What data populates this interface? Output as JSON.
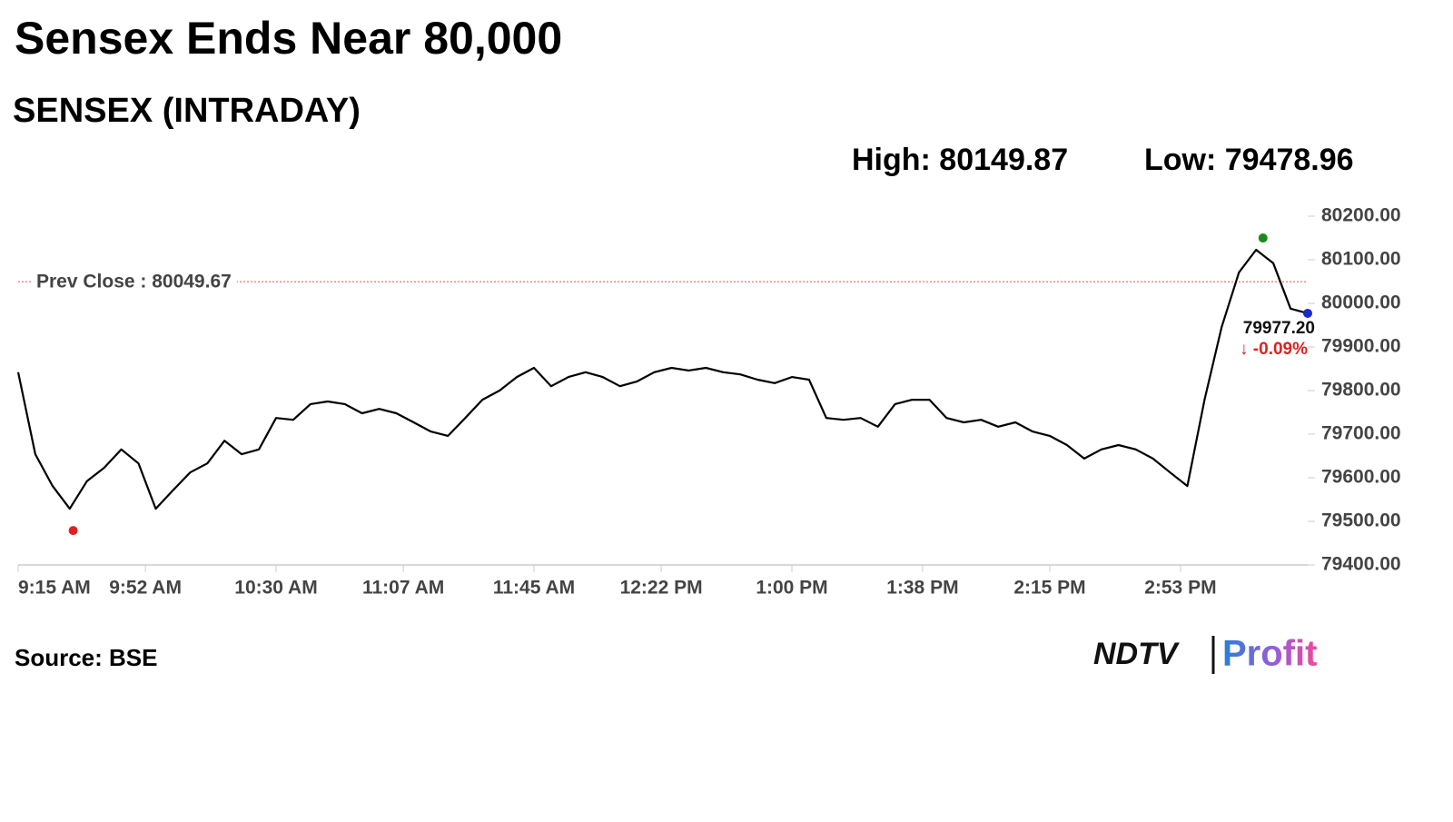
{
  "chart_data": {
    "type": "line",
    "title": "Sensex Ends Near 80,000",
    "subtitle": "SENSEX (INTRADAY)",
    "high": {
      "value": 80149.87,
      "label": "High: 80149.87",
      "x": "3:17 PM"
    },
    "low": {
      "value": 79478.96,
      "label": "Low: 79478.96",
      "x": "9:31 AM"
    },
    "prev_close": {
      "value": 80049.67,
      "label": "Prev Close : 80049.67"
    },
    "last": {
      "value": 79977.2,
      "label": "79977.20"
    },
    "change": {
      "value": -0.09,
      "label": "↓ -0.09%"
    },
    "source": "Source: BSE",
    "logo": [
      "NDTV",
      "Profit"
    ],
    "color": "#000000",
    "x": [
      "9:15 AM",
      "9:20 AM",
      "9:25 AM",
      "9:30 AM",
      "9:35 AM",
      "9:40 AM",
      "9:45 AM",
      "9:50 AM",
      "9:55 AM",
      "10:00 AM",
      "10:05 AM",
      "10:10 AM",
      "10:15 AM",
      "10:20 AM",
      "10:25 AM",
      "10:30 AM",
      "10:35 AM",
      "10:40 AM",
      "10:45 AM",
      "10:50 AM",
      "10:55 AM",
      "11:00 AM",
      "11:05 AM",
      "11:10 AM",
      "11:15 AM",
      "11:20 AM",
      "11:25 AM",
      "11:30 AM",
      "11:35 AM",
      "11:40 AM",
      "11:45 AM",
      "11:50 AM",
      "11:55 AM",
      "12:00 PM",
      "12:05 PM",
      "12:10 PM",
      "12:15 PM",
      "12:20 PM",
      "12:25 PM",
      "12:30 PM",
      "12:35 PM",
      "12:40 PM",
      "12:45 PM",
      "12:50 PM",
      "12:55 PM",
      "1:00 PM",
      "1:05 PM",
      "1:10 PM",
      "1:15 PM",
      "1:20 PM",
      "1:25 PM",
      "1:30 PM",
      "1:35 PM",
      "1:40 PM",
      "1:45 PM",
      "1:50 PM",
      "1:55 PM",
      "2:00 PM",
      "2:05 PM",
      "2:10 PM",
      "2:15 PM",
      "2:20 PM",
      "2:25 PM",
      "2:30 PM",
      "2:35 PM",
      "2:40 PM",
      "2:45 PM",
      "2:50 PM",
      "2:55 PM",
      "3:00 PM",
      "3:05 PM",
      "3:10 PM",
      "3:15 PM",
      "3:20 PM",
      "3:25 PM",
      "3:30 PM"
    ],
    "values": [
      79842,
      79654,
      79581,
      79529,
      79592,
      79623,
      79665,
      79633,
      79529,
      79571,
      79612,
      79633,
      79685,
      79654,
      79665,
      79737,
      79733,
      79769,
      79775,
      79769,
      79748,
      79758,
      79748,
      79727,
      79706,
      79696,
      79737,
      79779,
      79800,
      79831,
      79852,
      79810,
      79831,
      79842,
      79831,
      79810,
      79821,
      79842,
      79852,
      79846,
      79852,
      79842,
      79837,
      79825,
      79817,
      79831,
      79825,
      79737,
      79733,
      79737,
      79717,
      79769,
      79779,
      79779,
      79737,
      79727,
      79733,
      79717,
      79727,
      79706,
      79696,
      79675,
      79644,
      79665,
      79675,
      79665,
      79644,
      79612,
      79581,
      79779,
      79946,
      80071,
      80123,
      80092,
      79988,
      79977.2
    ],
    "xlim": [
      "9:15 AM",
      "3:30 PM"
    ],
    "xticks": [
      "9:15 AM",
      "9:52 AM",
      "10:30 AM",
      "11:07 AM",
      "11:45 AM",
      "12:22 PM",
      "1:00 PM",
      "1:38 PM",
      "2:15 PM",
      "2:53 PM"
    ],
    "ylim": [
      79400,
      80200
    ],
    "yticks": [
      {
        "value": 79400,
        "label": "79400.00"
      },
      {
        "value": 79500,
        "label": "79500.00"
      },
      {
        "value": 79600,
        "label": "79600.00"
      },
      {
        "value": 79700,
        "label": "79700.00"
      },
      {
        "value": 79800,
        "label": "79800.00"
      },
      {
        "value": 79900,
        "label": "79900.00"
      },
      {
        "value": 80000,
        "label": "80000.00"
      },
      {
        "value": 80100,
        "label": "80100.00"
      },
      {
        "value": 80200,
        "label": "80200.00"
      }
    ]
  }
}
